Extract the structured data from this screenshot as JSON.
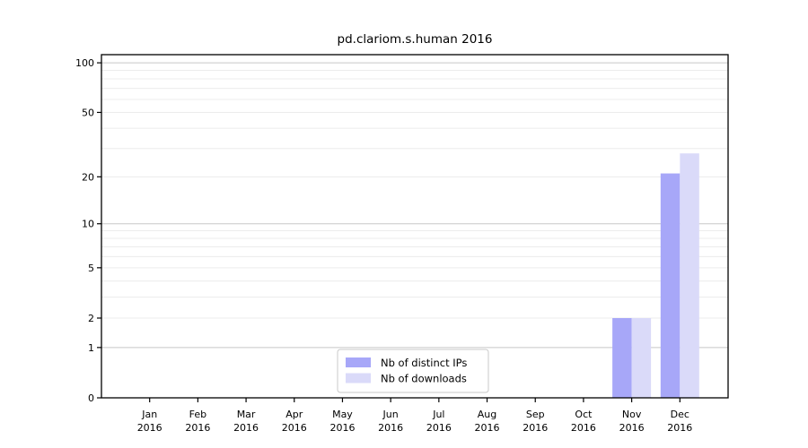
{
  "chart_data": {
    "type": "bar",
    "title": "pd.clariom.s.human 2016",
    "x_axis": {
      "categories": [
        "Jan",
        "Feb",
        "Mar",
        "Apr",
        "May",
        "Jun",
        "Jul",
        "Aug",
        "Sep",
        "Oct",
        "Nov",
        "Dec"
      ],
      "year_label": "2016"
    },
    "y_axis": {
      "scale": "log1p",
      "lim": [
        0,
        112
      ],
      "ticks": [
        0,
        1,
        2,
        5,
        10,
        20,
        50,
        100
      ],
      "major_gridlines": [
        1,
        10,
        100
      ],
      "minor_gridlines": [
        2,
        3,
        4,
        5,
        6,
        7,
        8,
        9,
        20,
        30,
        40,
        50,
        60,
        70,
        80,
        90
      ]
    },
    "series": [
      {
        "name": "Nb of distinct IPs",
        "color": "#a7a7f8",
        "values": [
          0,
          0,
          0,
          0,
          0,
          0,
          0,
          0,
          0,
          0,
          2,
          21
        ]
      },
      {
        "name": "Nb of downloads",
        "color": "#dadaf9",
        "values": [
          0,
          0,
          0,
          0,
          0,
          0,
          0,
          0,
          0,
          0,
          2,
          28
        ]
      }
    ],
    "legend": {
      "position": "bottom-center",
      "entries": [
        "Nb of distinct IPs",
        "Nb of downloads"
      ]
    },
    "colors": {
      "axis": "#000000",
      "major_grid": "#c8c8c8",
      "minor_grid": "#ececec",
      "legend_border": "#c9c9c9",
      "background": "#ffffff"
    }
  }
}
